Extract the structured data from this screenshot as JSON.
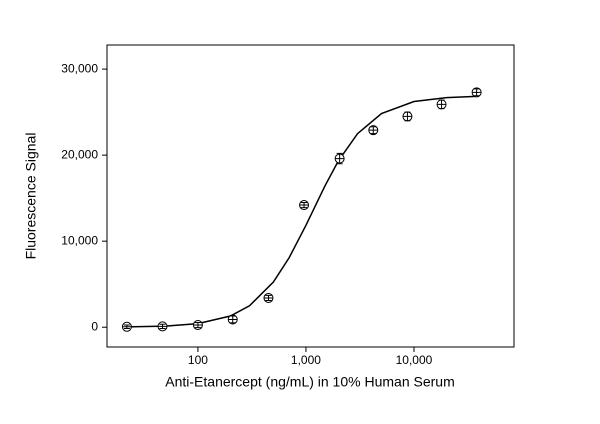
{
  "chart_data": {
    "type": "scatter",
    "x_label": "Anti-Etanercept (ng/mL) in 10% Human Serum",
    "y_label": "Fluorescence Signal",
    "x_scale": "log",
    "xlim": [
      14.4,
      84300
    ],
    "ylim": [
      -2300,
      32800
    ],
    "xticks": [
      100,
      {
        "value": 1000,
        "label": "1,000"
      },
      {
        "value": 10000,
        "label": "10,000"
      }
    ],
    "yticks": [
      0,
      {
        "value": 10000,
        "label": "10,000"
      },
      {
        "value": 20000,
        "label": "20,000"
      },
      {
        "value": 30000,
        "label": "30,000"
      }
    ],
    "color": "#000000",
    "x": [
      22,
      47,
      100,
      210,
      450,
      960,
      2050,
      4200,
      8700,
      18000,
      38000
    ],
    "values": [
      50,
      100,
      250,
      900,
      3400,
      14200,
      19600,
      22900,
      24500,
      25900,
      27300
    ],
    "errors": [
      200,
      250,
      300,
      400,
      300,
      300,
      600,
      400,
      500,
      500,
      400
    ],
    "curve": {
      "x": [
        20,
        50,
        100,
        200,
        300,
        500,
        700,
        1000,
        1500,
        2000,
        3000,
        5000,
        10000,
        20000,
        40000
      ],
      "values": [
        27,
        130,
        417,
        1308,
        2488,
        5253,
        8088,
        11855,
        16438,
        19348,
        22493,
        24844,
        26237,
        26692,
        26836
      ]
    }
  }
}
